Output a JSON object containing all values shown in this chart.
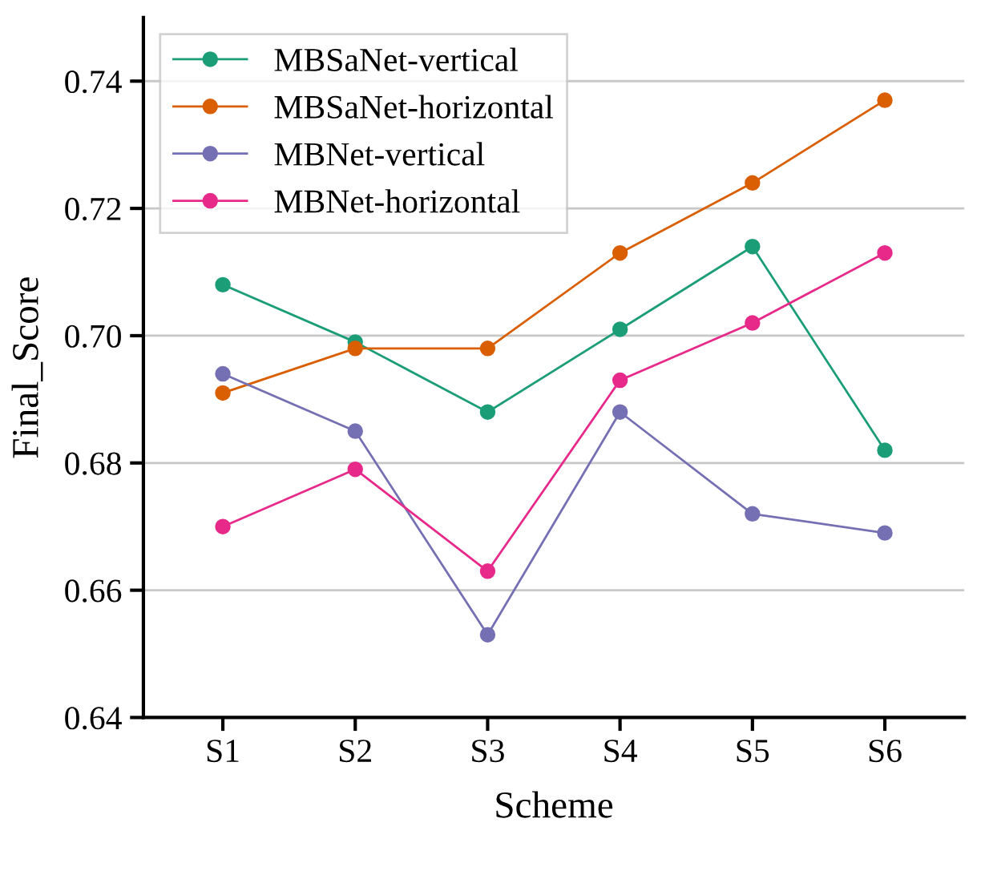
{
  "chart_data": {
    "type": "line",
    "xlabel": "Scheme",
    "ylabel": "Final_Score",
    "categories": [
      "S1",
      "S2",
      "S3",
      "S4",
      "S5",
      "S6"
    ],
    "series": [
      {
        "name": "MBSaNet-vertical",
        "color": "#1b9e77",
        "values": [
          0.708,
          0.699,
          0.688,
          0.701,
          0.714,
          0.682
        ]
      },
      {
        "name": "MBSaNet-horizontal",
        "color": "#d95f02",
        "values": [
          0.691,
          0.698,
          0.698,
          0.713,
          0.724,
          0.737
        ]
      },
      {
        "name": "MBNet-vertical",
        "color": "#7570b3",
        "values": [
          0.694,
          0.685,
          0.653,
          0.688,
          0.672,
          0.669
        ]
      },
      {
        "name": "MBNet-horizontal",
        "color": "#e7298a",
        "values": [
          0.67,
          0.679,
          0.663,
          0.693,
          0.702,
          0.713
        ]
      }
    ],
    "ylim": [
      0.64,
      0.75
    ],
    "yticks": [
      {
        "value": 0.64,
        "label": "0.64"
      },
      {
        "value": 0.66,
        "label": "0.66"
      },
      {
        "value": 0.68,
        "label": "0.68"
      },
      {
        "value": 0.7,
        "label": "0.70"
      },
      {
        "value": 0.72,
        "label": "0.72"
      },
      {
        "value": 0.74,
        "label": "0.74"
      }
    ],
    "grid": "y",
    "legend": "top left",
    "marker": "circle",
    "line_style": "solid"
  }
}
